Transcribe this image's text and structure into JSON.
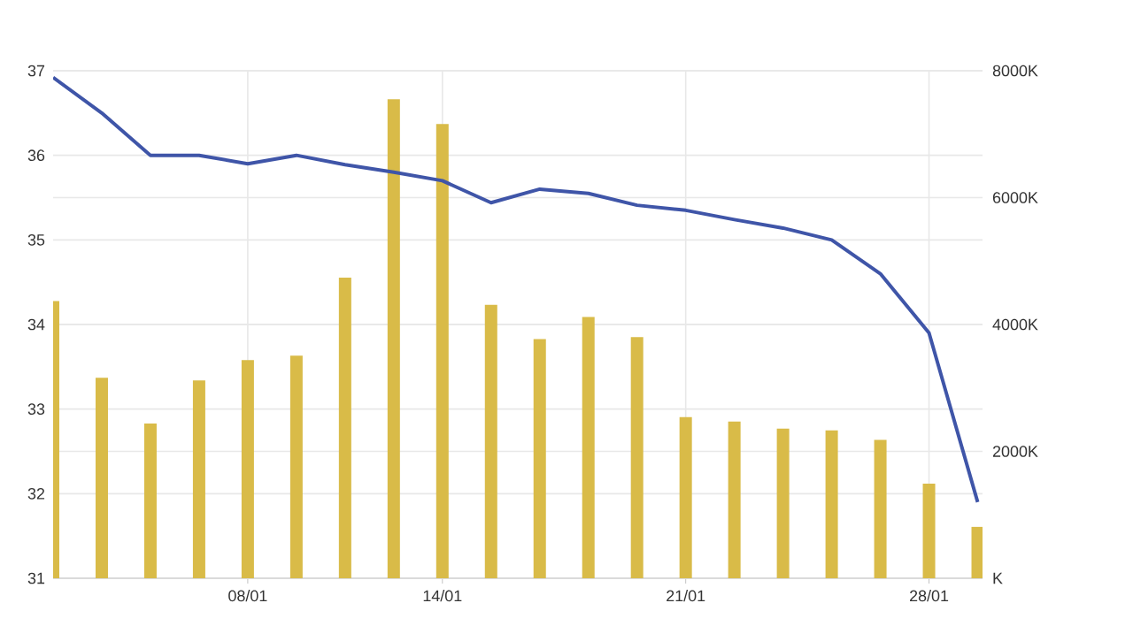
{
  "chart_data": {
    "type": "bar",
    "categories": [
      null,
      null,
      null,
      null,
      "08/01",
      null,
      null,
      null,
      "14/01",
      null,
      null,
      null,
      null,
      "21/01",
      null,
      null,
      null,
      null,
      "28/01",
      null
    ],
    "series": [
      {
        "axis": "y2",
        "color": "#d9bb48",
        "values": [
          4370,
          3160,
          2440,
          3120,
          3440,
          3510,
          4740,
          7550,
          7160,
          4310,
          3770,
          4120,
          3800,
          2540,
          2470,
          2360,
          2330,
          2180,
          1490,
          810
        ]
      },
      {
        "type": "line",
        "color": "#3f55a8",
        "values": [
          36.92,
          36.5,
          36.0,
          36.0,
          35.9,
          36.0,
          35.89,
          35.8,
          35.7,
          35.44,
          35.6,
          35.55,
          35.41,
          35.35,
          35.24,
          35.14,
          35.0,
          34.6,
          33.9,
          31.9
        ]
      }
    ],
    "ylim": [
      31,
      37
    ],
    "yticks": [
      31,
      32,
      33,
      34,
      35,
      36,
      37
    ],
    "y2lim": [
      0,
      8000
    ],
    "y2ticks": [
      {
        "value": 0,
        "label": "K"
      },
      {
        "value": 2000,
        "label": "2000K"
      },
      {
        "value": 4000,
        "label": "4000K"
      },
      {
        "value": 6000,
        "label": "6000K"
      },
      {
        "value": 8000,
        "label": "8000K"
      }
    ],
    "grid": true,
    "line_style": "solid",
    "marker": "none"
  }
}
